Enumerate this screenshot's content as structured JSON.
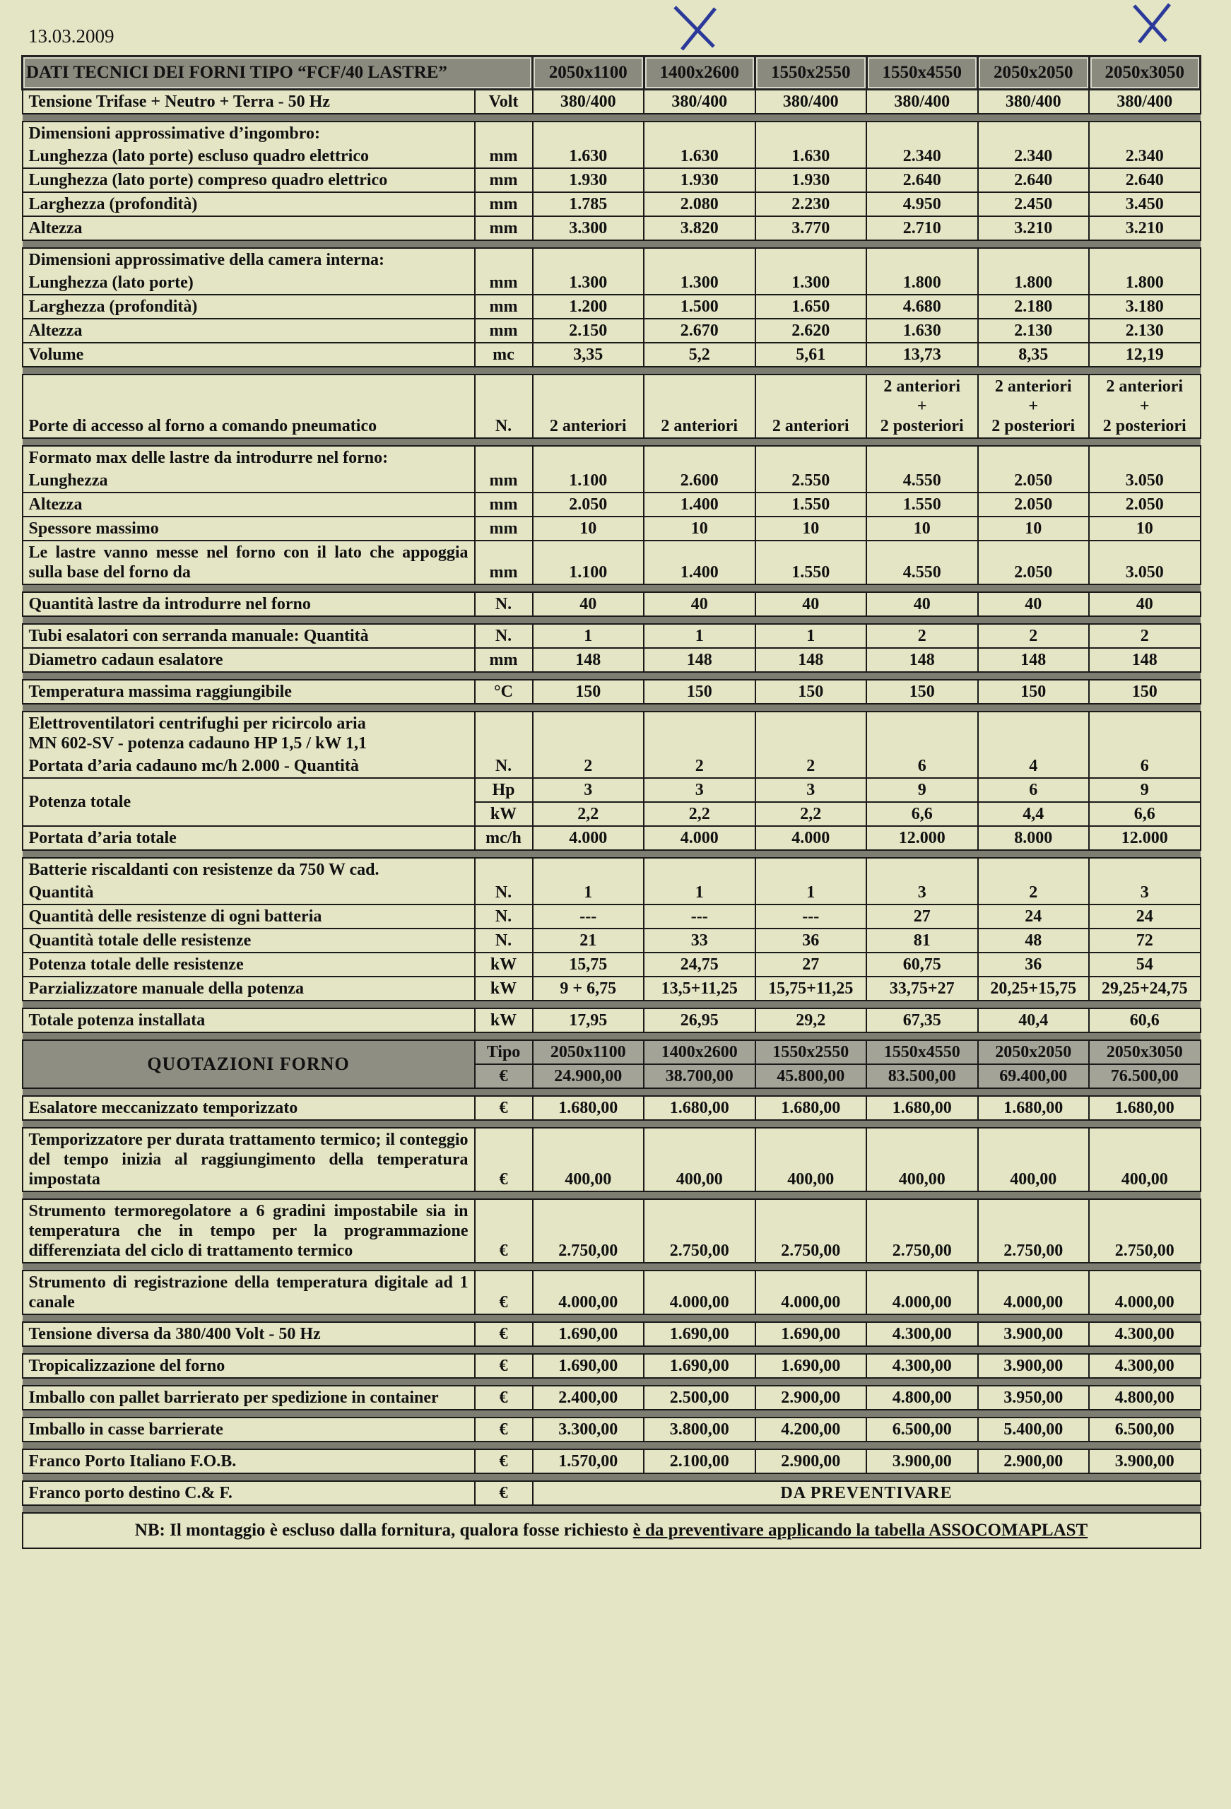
{
  "date": "13.03.2009",
  "header": {
    "title": "DATI TECNICI DEI FORNI TIPO “FCF/40 LASTRE”",
    "models": [
      "2050x1100",
      "1400x2600",
      "1550x2550",
      "1550x4550",
      "2050x2050",
      "2050x3050"
    ]
  },
  "sections": [
    [
      {
        "label": "Tensione Trifase + Neutro + Terra  -  50 Hz",
        "unit": "Volt",
        "values": [
          "380/400",
          "380/400",
          "380/400",
          "380/400",
          "380/400",
          "380/400"
        ]
      }
    ],
    [
      {
        "label": "Dimensioni approssimative d’ingombro:"
      },
      {
        "label": "Lunghezza (lato porte) escluso quadro elettrico",
        "unit": "mm",
        "values": [
          "1.630",
          "1.630",
          "1.630",
          "2.340",
          "2.340",
          "2.340"
        ]
      },
      {
        "label": "Lunghezza (lato porte) compreso quadro elettrico",
        "unit": "mm",
        "values": [
          "1.930",
          "1.930",
          "1.930",
          "2.640",
          "2.640",
          "2.640"
        ]
      },
      {
        "label": "Larghezza (profondità)",
        "unit": "mm",
        "values": [
          "1.785",
          "2.080",
          "2.230",
          "4.950",
          "2.450",
          "3.450"
        ]
      },
      {
        "label": "Altezza",
        "unit": "mm",
        "values": [
          "3.300",
          "3.820",
          "3.770",
          "2.710",
          "3.210",
          "3.210"
        ]
      }
    ],
    [
      {
        "label": "Dimensioni approssimative della camera interna:"
      },
      {
        "label": "Lunghezza (lato porte)",
        "unit": "mm",
        "values": [
          "1.300",
          "1.300",
          "1.300",
          "1.800",
          "1.800",
          "1.800"
        ]
      },
      {
        "label": "Larghezza (profondità)",
        "unit": "mm",
        "values": [
          "1.200",
          "1.500",
          "1.650",
          "4.680",
          "2.180",
          "3.180"
        ]
      },
      {
        "label": "Altezza",
        "unit": "mm",
        "values": [
          "2.150",
          "2.670",
          "2.620",
          "1.630",
          "2.130",
          "2.130"
        ]
      },
      {
        "label": "Volume",
        "unit": "mc",
        "values": [
          "3,35",
          "5,2",
          "5,61",
          "13,73",
          "8,35",
          "12,19"
        ]
      }
    ],
    [
      {
        "label": "Porte di accesso al forno a comando pneumatico",
        "unit": "N.",
        "values": [
          "2 anteriori",
          "2 anteriori",
          "2 anteriori",
          "2 anteriori\n+\n2 posteriori",
          "2 anteriori\n+\n2 posteriori",
          "2 anteriori\n+\n2 posteriori"
        ]
      }
    ],
    [
      {
        "label": "Formato max delle lastre da introdurre nel forno:"
      },
      {
        "label": "Lunghezza",
        "unit": "mm",
        "values": [
          "1.100",
          "2.600",
          "2.550",
          "4.550",
          "2.050",
          "3.050"
        ]
      },
      {
        "label": "Altezza",
        "unit": "mm",
        "values": [
          "2.050",
          "1.400",
          "1.550",
          "1.550",
          "2.050",
          "2.050"
        ]
      },
      {
        "label": "Spessore massimo",
        "unit": "mm",
        "values": [
          "10",
          "10",
          "10",
          "10",
          "10",
          "10"
        ]
      },
      {
        "label": "Le lastre vanno messe nel forno con il lato che appoggia sulla base del forno da",
        "unit": "mm",
        "values": [
          "1.100",
          "1.400",
          "1.550",
          "4.550",
          "2.050",
          "3.050"
        ]
      }
    ],
    [
      {
        "label": "Quantità lastre da introdurre nel forno",
        "unit": "N.",
        "values": [
          "40",
          "40",
          "40",
          "40",
          "40",
          "40"
        ]
      }
    ],
    [
      {
        "label": "Tubi esalatori con serranda manuale:      Quantità",
        "unit": "N.",
        "values": [
          "1",
          "1",
          "1",
          "2",
          "2",
          "2"
        ]
      },
      {
        "label": "Diametro cadaun esalatore",
        "unit": "mm",
        "values": [
          "148",
          "148",
          "148",
          "148",
          "148",
          "148"
        ]
      }
    ],
    [
      {
        "label": "Temperatura massima raggiungibile",
        "unit": "°C",
        "values": [
          "150",
          "150",
          "150",
          "150",
          "150",
          "150"
        ]
      }
    ],
    [
      {
        "label": "Elettroventilatori centrifughi per ricircolo aria\nMN 602-SV - potenza cadauno  HP 1,5 / kW 1,1"
      },
      {
        "label": "Portata d’aria cadauno mc/h 2.000   -   Quantità",
        "unit": "N.",
        "values": [
          "2",
          "2",
          "2",
          "6",
          "4",
          "6"
        ]
      },
      {
        "label": "Potenza totale",
        "sub": [
          {
            "unit": "Hp",
            "values": [
              "3",
              "3",
              "3",
              "9",
              "6",
              "9"
            ]
          },
          {
            "unit": "kW",
            "values": [
              "2,2",
              "2,2",
              "2,2",
              "6,6",
              "4,4",
              "6,6"
            ]
          }
        ]
      },
      {
        "label": "Portata d’aria totale",
        "unit": "mc/h",
        "values": [
          "4.000",
          "4.000",
          "4.000",
          "12.000",
          "8.000",
          "12.000"
        ]
      }
    ],
    [
      {
        "label": "Batterie riscaldanti con resistenze da 750 W cad."
      },
      {
        "label": "Quantità",
        "unit": "N.",
        "values": [
          "1",
          "1",
          "1",
          "3",
          "2",
          "3"
        ]
      },
      {
        "label": "Quantità  delle resistenze di ogni batteria",
        "unit": "N.",
        "values": [
          "---",
          "---",
          "---",
          "27",
          "24",
          "24"
        ]
      },
      {
        "label": "Quantità totale delle resistenze",
        "unit": "N.",
        "values": [
          "21",
          "33",
          "36",
          "81",
          "48",
          "72"
        ]
      },
      {
        "label": "Potenza totale delle resistenze",
        "unit": "kW",
        "values": [
          "15,75",
          "24,75",
          "27",
          "60,75",
          "36",
          "54"
        ]
      },
      {
        "label": "Parzializzatore manuale della potenza",
        "unit": "kW",
        "values": [
          "9 + 6,75",
          "13,5+11,25",
          "15,75+11,25",
          "33,75+27",
          "20,25+15,75",
          "29,25+24,75"
        ]
      }
    ],
    [
      {
        "label": "Totale potenza installata",
        "unit": "kW",
        "values": [
          "17,95",
          "26,95",
          "29,2",
          "67,35",
          "40,4",
          "60,6"
        ]
      }
    ]
  ],
  "quotation": {
    "label": "QUOTAZIONI FORNO",
    "rows": [
      {
        "unit": "Tipo",
        "values": [
          "2050x1100",
          "1400x2600",
          "1550x2550",
          "1550x4550",
          "2050x2050",
          "2050x3050"
        ]
      },
      {
        "unit": "€",
        "values": [
          "24.900,00",
          "38.700,00",
          "45.800,00",
          "83.500,00",
          "69.400,00",
          "76.500,00"
        ]
      }
    ]
  },
  "extras": [
    [
      {
        "label": "Esalatore meccanizzato temporizzato",
        "unit": "€",
        "values": [
          "1.680,00",
          "1.680,00",
          "1.680,00",
          "1.680,00",
          "1.680,00",
          "1.680,00"
        ]
      }
    ],
    [
      {
        "label": "Temporizzatore per durata trattamento termico; il conteggio del tempo inizia al raggiungimento della temperatura impostata",
        "unit": "€",
        "values": [
          "400,00",
          "400,00",
          "400,00",
          "400,00",
          "400,00",
          "400,00"
        ]
      }
    ],
    [
      {
        "label": "Strumento termoregolatore a 6 gradini impostabile sia in temperatura che in tempo per la programmazione differenziata del ciclo di trattamento termico",
        "unit": "€",
        "values": [
          "2.750,00",
          "2.750,00",
          "2.750,00",
          "2.750,00",
          "2.750,00",
          "2.750,00"
        ]
      }
    ],
    [
      {
        "label": "Strumento di registrazione della temperatura digitale ad 1 canale",
        "unit": "€",
        "values": [
          "4.000,00",
          "4.000,00",
          "4.000,00",
          "4.000,00",
          "4.000,00",
          "4.000,00"
        ]
      }
    ],
    [
      {
        "label": "Tensione diversa da 380/400 Volt  - 50 Hz",
        "unit": "€",
        "values": [
          "1.690,00",
          "1.690,00",
          "1.690,00",
          "4.300,00",
          "3.900,00",
          "4.300,00"
        ]
      }
    ],
    [
      {
        "label": "Tropicalizzazione del forno",
        "unit": "€",
        "values": [
          "1.690,00",
          "1.690,00",
          "1.690,00",
          "4.300,00",
          "3.900,00",
          "4.300,00"
        ]
      }
    ],
    [
      {
        "label": "Imballo con pallet barrierato per spedizione in container",
        "unit": "€",
        "values": [
          "2.400,00",
          "2.500,00",
          "2.900,00",
          "4.800,00",
          "3.950,00",
          "4.800,00"
        ]
      }
    ],
    [
      {
        "label": "Imballo in casse barrierate",
        "unit": "€",
        "values": [
          "3.300,00",
          "3.800,00",
          "4.200,00",
          "6.500,00",
          "5.400,00",
          "6.500,00"
        ]
      }
    ],
    [
      {
        "label": "Franco Porto Italiano F.O.B.",
        "unit": "€",
        "values": [
          "1.570,00",
          "2.100,00",
          "2.900,00",
          "3.900,00",
          "2.900,00",
          "3.900,00"
        ]
      }
    ],
    [
      {
        "label": "Franco porto destino C.& F.",
        "unit": "€",
        "text": "DA PREVENTIVARE"
      }
    ]
  ],
  "note": {
    "text": "NB: Il montaggio è escluso dalla fornitura, qualora fosse richiesto ",
    "underlined": "è da preventivare applicando la tabella ASSOCOMAPLAST"
  }
}
